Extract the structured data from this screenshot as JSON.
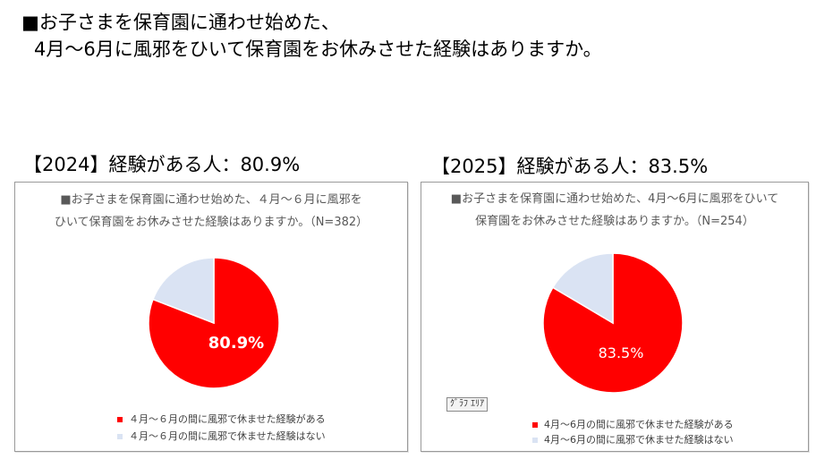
{
  "header": {
    "line1": "■お子さまを保育園に通わせ始めた、",
    "line2": "4月～6月に風邪をひいて保育園をお休みさせた経験はありますか。"
  },
  "chart_data": [
    {
      "type": "pie",
      "heading": "【2024】経験がある人：80.9%",
      "title_lines": [
        "■お子さまを保育園に通わせ始めた、４月～６月に風邪を",
        "ひいて保育園をお休みさせた経験はありますか。（N=382）"
      ],
      "categories": [
        "４月～６月の間に風邪で休ませた経験がある",
        "４月～６月の間に風邪で休ませた経験はない"
      ],
      "values": [
        80.9,
        19.1
      ],
      "colors": [
        "#ff0000",
        "#dae3f3"
      ],
      "data_label": "80.9%",
      "legend_position": "bottom"
    },
    {
      "type": "pie",
      "heading": "【2025】経験がある人：83.5%",
      "title_lines": [
        "■お子さまを保育園に通わせ始めた、4月～6月に風邪をひいて",
        "保育園をお休みさせた経験はありますか。（N=254）"
      ],
      "categories": [
        "4月～6月の間に風邪で休ませた経験がある",
        "4月～6月の間に風邪で休ませた経験はない"
      ],
      "values": [
        83.5,
        16.5
      ],
      "colors": [
        "#ff0000",
        "#dae3f3"
      ],
      "data_label": "83.5%",
      "legend_position": "bottom",
      "chart_area_tag": "ｸﾞﾗﾌ ｴﾘｱ"
    }
  ]
}
